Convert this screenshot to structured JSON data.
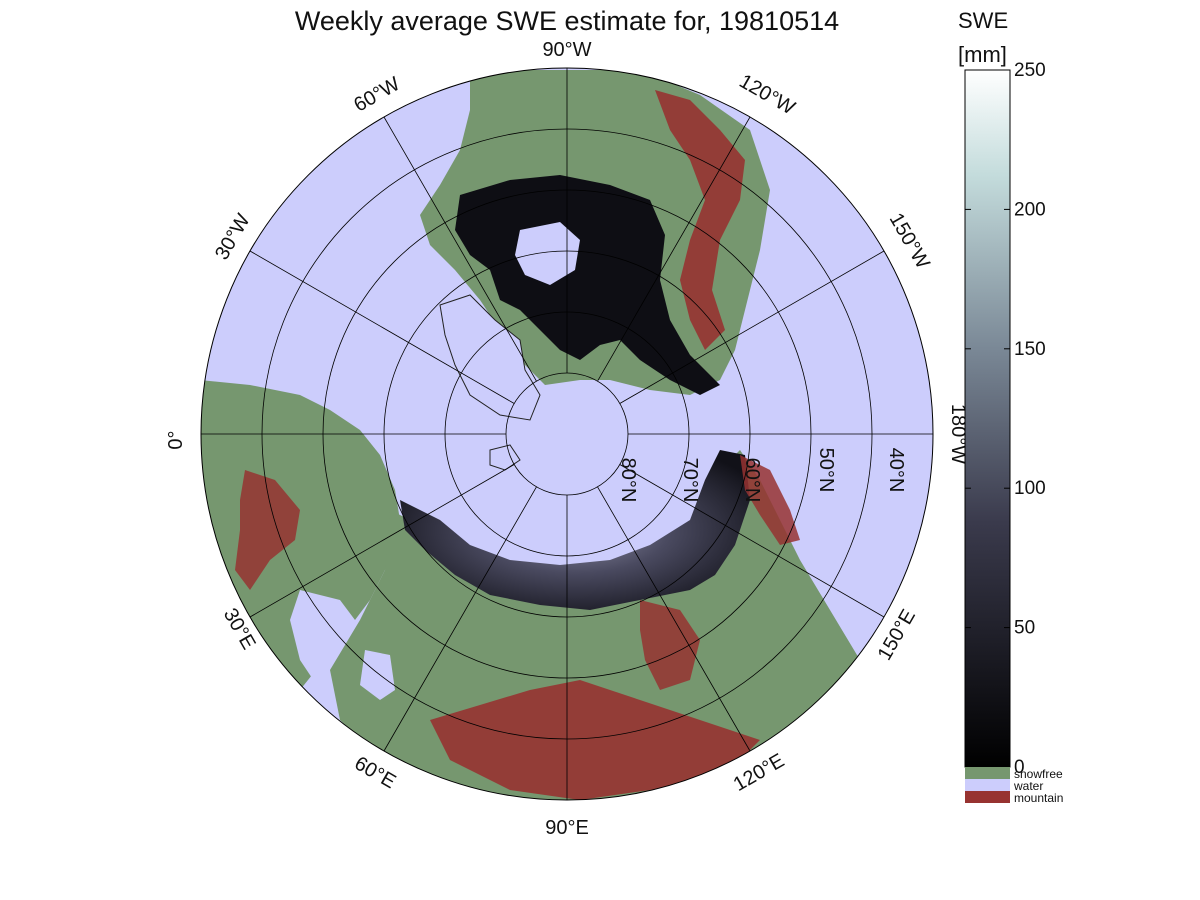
{
  "title": "Weekly average SWE estimate for, 19810514",
  "colorbar": {
    "title_line1": "SWE",
    "title_line2": "[mm]",
    "ticks": [
      "250",
      "200",
      "150",
      "100",
      "50",
      "0"
    ],
    "tick_values": [
      250,
      200,
      150,
      100,
      50,
      0
    ],
    "range": [
      0,
      250
    ],
    "colors": {
      "low": "#000000",
      "mid": "#5a5a78",
      "high": "#ffffff"
    }
  },
  "legend": {
    "items": [
      {
        "label": "snowfree",
        "color": "#76976f"
      },
      {
        "label": "water",
        "color": "#cccdfc"
      },
      {
        "label": "mountain",
        "color": "#973331"
      }
    ]
  },
  "longitude_labels": {
    "top": "90°W",
    "upper_left": "60°W",
    "left_upper": "30°W",
    "left": "0°",
    "lower_left": "30°E",
    "lower_left2": "60°E",
    "bottom": "90°E",
    "lower_right": "120°E",
    "right_lower": "150°E",
    "right": "180°W",
    "right_upper": "150°W",
    "upper_right": "120°W"
  },
  "latitude_labels": [
    "80°N",
    "70°N",
    "60°N",
    "50°N",
    "40°N"
  ],
  "map_colors": {
    "water": "#cccdfc",
    "land": "#76976f",
    "mountain": "#973331",
    "snow_dark": "#0e0e14",
    "snow_mid": "#3c3c50"
  }
}
